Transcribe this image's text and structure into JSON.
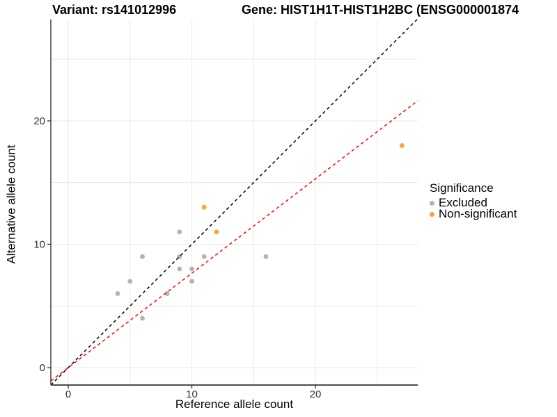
{
  "header": {
    "variant_title": "Variant: rs141012996",
    "gene_title": "Gene: HIST1H1T-HIST1H2BC (ENSG000001874"
  },
  "chart_data": {
    "type": "scatter",
    "xlabel": "Reference allele count",
    "ylabel": "Alternative allele count",
    "xlim": [
      -1.41,
      28.28
    ],
    "ylim": [
      -1.41,
      28.22
    ],
    "x_ticks": [
      0,
      10,
      20
    ],
    "y_ticks": [
      0,
      10,
      20
    ],
    "grid": {
      "x": [
        0,
        5,
        10,
        15,
        20,
        25
      ],
      "y": [
        0,
        5,
        10,
        15,
        20,
        25
      ],
      "color": "#e9e9e9"
    },
    "axis_color": "#333333",
    "tick_label_color": "#333333",
    "series": [
      {
        "name": "Excluded",
        "color": "#b3b3b3",
        "points": [
          [
            4,
            6
          ],
          [
            5,
            7
          ],
          [
            6,
            4
          ],
          [
            6,
            9
          ],
          [
            8,
            6
          ],
          [
            9,
            8
          ],
          [
            9,
            9
          ],
          [
            9,
            11
          ],
          [
            10,
            7
          ],
          [
            10,
            8
          ],
          [
            11,
            9
          ],
          [
            16,
            9
          ]
        ]
      },
      {
        "name": "Non-significant",
        "color": "#faa62f",
        "points": [
          [
            11,
            13
          ],
          [
            12,
            11
          ],
          [
            27,
            18
          ]
        ]
      }
    ],
    "ref_lines": [
      {
        "name": "identity-line",
        "slope": 1,
        "intercept": 0,
        "color": "#000000",
        "dash": "4.5 4"
      },
      {
        "name": "fit-line",
        "slope": 0.765,
        "intercept": 0,
        "color": "#ff0000",
        "dash": "4.5 4"
      }
    ],
    "legend": {
      "title": "Significance",
      "position": "right",
      "items": [
        {
          "label": "Excluded",
          "color": "#b3b3b3"
        },
        {
          "label": "Non-significant",
          "color": "#faa62f"
        }
      ]
    }
  }
}
